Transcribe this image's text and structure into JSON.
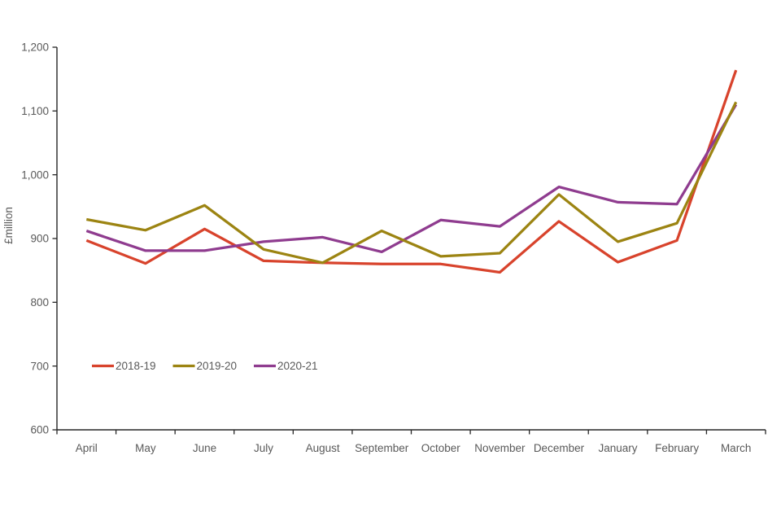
{
  "chart_data": {
    "type": "line",
    "title": "",
    "xlabel": "",
    "ylabel": "£million",
    "categories": [
      "April",
      "May",
      "June",
      "July",
      "August",
      "September",
      "October",
      "November",
      "December",
      "January",
      "February",
      "March"
    ],
    "series": [
      {
        "name": "2018-19",
        "color": "#D8432C",
        "values": [
          897,
          861,
          915,
          865,
          862,
          860,
          860,
          847,
          927,
          863,
          897,
          1164
        ]
      },
      {
        "name": "2019-20",
        "color": "#9C8412",
        "values": [
          930,
          913,
          952,
          883,
          862,
          912,
          872,
          877,
          969,
          895,
          924,
          1114
        ]
      },
      {
        "name": "2020-21",
        "color": "#8F3C8F",
        "values": [
          912,
          881,
          881,
          895,
          902,
          879,
          929,
          919,
          981,
          957,
          954,
          1110
        ]
      }
    ],
    "ylim": [
      600,
      1200
    ],
    "ytick_step": 100,
    "ytick_labels": [
      "600",
      "700",
      "800",
      "900",
      "1,000",
      "1,100",
      "1,200"
    ],
    "grid": false,
    "legend_position": "inside-bottom-left",
    "axis_color": "#262626",
    "text_color": "#595959",
    "draw_order": [
      0,
      2,
      1
    ]
  }
}
